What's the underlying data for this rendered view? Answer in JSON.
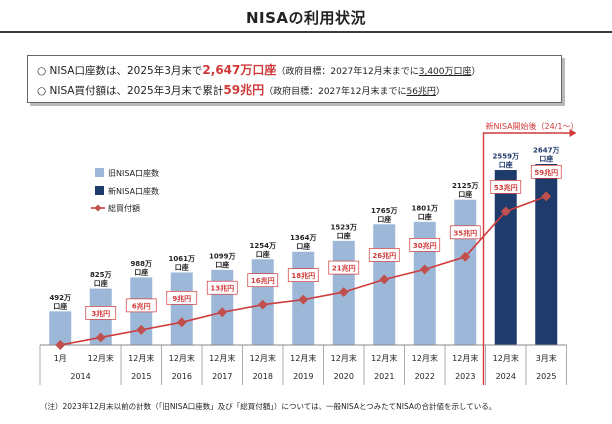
{
  "page": {
    "title": "NISAの利用状況",
    "summary": [
      {
        "prefix": "○ ",
        "text_before": "NISA口座数は、2025年3月末で",
        "highlight": "2,647万口座",
        "note_before": "（政府目標：2027年12月末までに",
        "note_underlined": "3,400万口座",
        "note_after": "）"
      },
      {
        "prefix": "○ ",
        "text_before": "NISA買付額は、2025年3月末で累計",
        "highlight": "59兆円",
        "note_before": "（政府目標：2027年12月末までに",
        "note_underlined": "56兆円",
        "note_after": "）"
      }
    ],
    "footnote": "（注）2023年12月末以前の計数（「旧NISA口座数」及び「総買付額」）については、一般NISAとつみたてNISAの合計値を示している。"
  },
  "colors": {
    "old_bar": "#9db7d9",
    "new_bar": "#1f3b6b",
    "line": "#cf3b3b",
    "marker": "#c0504d",
    "annotation": "#d03a3a"
  },
  "chart_data": {
    "type": "bar",
    "combo": "bar+line",
    "categories": [
      "1月",
      "12月末",
      "12月末",
      "12月末",
      "12月末",
      "12月末",
      "12月末",
      "12月末",
      "12月末",
      "12月末",
      "12月末",
      "12月末",
      "3月末"
    ],
    "years": [
      "2014",
      "2015",
      "2016",
      "2017",
      "2018",
      "2019",
      "2020",
      "2021",
      "2022",
      "2023",
      "2024",
      "2025"
    ],
    "year_spans": [
      2,
      1,
      1,
      1,
      1,
      1,
      1,
      1,
      1,
      1,
      1,
      1
    ],
    "series": [
      {
        "name": "旧NISA口座数",
        "kind": "bar",
        "values": [
          492,
          825,
          988,
          1061,
          1099,
          1254,
          1364,
          1523,
          1765,
          1801,
          2125,
          null,
          null
        ],
        "labels": [
          "492万\n口座",
          "825万\n口座",
          "988万\n口座",
          "1061万\n口座",
          "1099万\n口座",
          "1254万\n口座",
          "1364万\n口座",
          "1523万\n口座",
          "1765万\n口座",
          "1801万\n口座",
          "2125万\n口座",
          "",
          ""
        ]
      },
      {
        "name": "新NISA口座数",
        "kind": "bar",
        "values": [
          null,
          null,
          null,
          null,
          null,
          null,
          null,
          null,
          null,
          null,
          null,
          2559,
          2647
        ],
        "labels": [
          "",
          "",
          "",
          "",
          "",
          "",
          "",
          "",
          "",
          "",
          "",
          "2559万\n口座",
          "2647万\n口座"
        ]
      },
      {
        "name": "総買付額",
        "kind": "line",
        "values": [
          0,
          3,
          6,
          9,
          13,
          16,
          18,
          21,
          26,
          30,
          35,
          53,
          59
        ],
        "labels": [
          "",
          "3兆円",
          "6兆円",
          "9兆円",
          "13兆円",
          "16兆円",
          "18兆円",
          "21兆円",
          "26兆円",
          "30兆円",
          "35兆円",
          "53兆円",
          "59兆円"
        ]
      }
    ],
    "annotation": "新NISA開始後（24/1～）",
    "legend_position": "top-left",
    "grid": false
  }
}
